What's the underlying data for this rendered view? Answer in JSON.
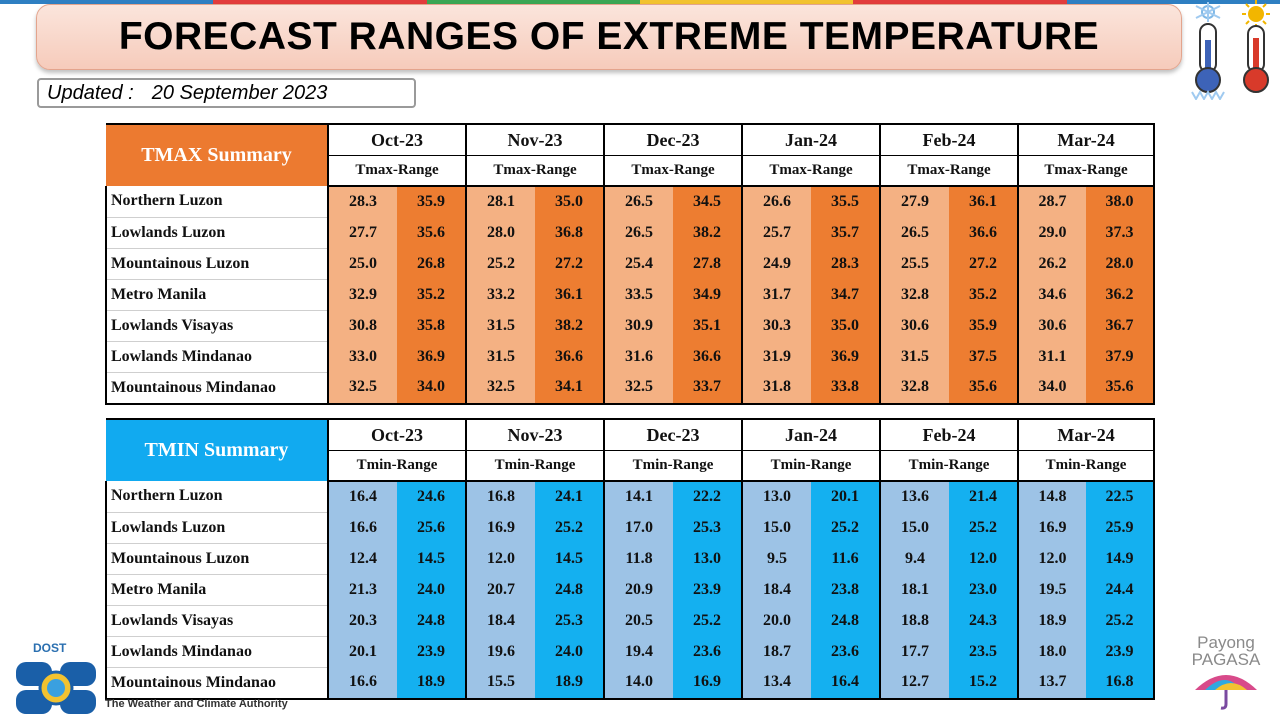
{
  "header": {
    "title": "FORECAST RANGES OF EXTREME TEMPERATURE",
    "updated_label": "Updated :",
    "updated_date": "20 September 2023"
  },
  "colors": {
    "tmax_title": "#ec7a30",
    "tmax_low": "#f4b183",
    "tmax_high": "#ed7d31",
    "tmin_title": "#11aaf0",
    "tmin_low": "#9dc3e6",
    "tmin_high": "#14b0f0"
  },
  "icons": [
    "cold-thermometer-icon",
    "hot-thermometer-icon",
    "dost-logo-icon",
    "payong-pagasa-umbrella-icon"
  ],
  "tmax": {
    "title": "TMAX Summary",
    "range_label": "Tmax-Range",
    "months": [
      "Oct-23",
      "Nov-23",
      "Dec-23",
      "Jan-24",
      "Feb-24",
      "Mar-24"
    ],
    "rows": [
      {
        "region": "Northern Luzon",
        "values": [
          "28.3",
          "35.9",
          "28.1",
          "35.0",
          "26.5",
          "34.5",
          "26.6",
          "35.5",
          "27.9",
          "36.1",
          "28.7",
          "38.0"
        ]
      },
      {
        "region": "Lowlands Luzon",
        "values": [
          "27.7",
          "35.6",
          "28.0",
          "36.8",
          "26.5",
          "38.2",
          "25.7",
          "35.7",
          "26.5",
          "36.6",
          "29.0",
          "37.3"
        ]
      },
      {
        "region": "Mountainous Luzon",
        "values": [
          "25.0",
          "26.8",
          "25.2",
          "27.2",
          "25.4",
          "27.8",
          "24.9",
          "28.3",
          "25.5",
          "27.2",
          "26.2",
          "28.0"
        ]
      },
      {
        "region": "Metro Manila",
        "values": [
          "32.9",
          "35.2",
          "33.2",
          "36.1",
          "33.5",
          "34.9",
          "31.7",
          "34.7",
          "32.8",
          "35.2",
          "34.6",
          "36.2"
        ]
      },
      {
        "region": "Lowlands Visayas",
        "values": [
          "30.8",
          "35.8",
          "31.5",
          "38.2",
          "30.9",
          "35.1",
          "30.3",
          "35.0",
          "30.6",
          "35.9",
          "30.6",
          "36.7"
        ]
      },
      {
        "region": "Lowlands Mindanao",
        "values": [
          "33.0",
          "36.9",
          "31.5",
          "36.6",
          "31.6",
          "36.6",
          "31.9",
          "36.9",
          "31.5",
          "37.5",
          "31.1",
          "37.9"
        ]
      },
      {
        "region": "Mountainous Mindanao",
        "values": [
          "32.5",
          "34.0",
          "32.5",
          "34.1",
          "32.5",
          "33.7",
          "31.8",
          "33.8",
          "32.8",
          "35.6",
          "34.0",
          "35.6"
        ]
      }
    ]
  },
  "tmin": {
    "title": "TMIN Summary",
    "range_label": "Tmin-Range",
    "months": [
      "Oct-23",
      "Nov-23",
      "Dec-23",
      "Jan-24",
      "Feb-24",
      "Mar-24"
    ],
    "rows": [
      {
        "region": "Northern Luzon",
        "values": [
          "16.4",
          "24.6",
          "16.8",
          "24.1",
          "14.1",
          "22.2",
          "13.0",
          "20.1",
          "13.6",
          "21.4",
          "14.8",
          "22.5"
        ]
      },
      {
        "region": "Lowlands Luzon",
        "values": [
          "16.6",
          "25.6",
          "16.9",
          "25.2",
          "17.0",
          "25.3",
          "15.0",
          "25.2",
          "15.0",
          "25.2",
          "16.9",
          "25.9"
        ]
      },
      {
        "region": "Mountainous Luzon",
        "values": [
          "12.4",
          "14.5",
          "12.0",
          "14.5",
          "11.8",
          "13.0",
          "9.5",
          "11.6",
          "9.4",
          "12.0",
          "12.0",
          "14.9"
        ]
      },
      {
        "region": "Metro Manila",
        "values": [
          "21.3",
          "24.0",
          "20.7",
          "24.8",
          "20.9",
          "23.9",
          "18.4",
          "23.8",
          "18.1",
          "23.0",
          "19.5",
          "24.4"
        ]
      },
      {
        "region": "Lowlands Visayas",
        "values": [
          "20.3",
          "24.8",
          "18.4",
          "25.3",
          "20.5",
          "25.2",
          "20.0",
          "24.8",
          "18.8",
          "24.3",
          "18.9",
          "25.2"
        ]
      },
      {
        "region": "Lowlands Mindanao",
        "values": [
          "20.1",
          "23.9",
          "19.6",
          "24.0",
          "19.4",
          "23.6",
          "18.7",
          "23.6",
          "17.7",
          "23.5",
          "18.0",
          "23.9"
        ]
      },
      {
        "region": "Mountainous Mindanao",
        "values": [
          "16.6",
          "18.9",
          "15.5",
          "18.9",
          "14.0",
          "16.9",
          "13.4",
          "16.4",
          "12.7",
          "15.2",
          "13.7",
          "16.8"
        ]
      }
    ]
  },
  "footer": {
    "dost_label": "DOST",
    "tagline": "The Weather and Climate Authority",
    "payong_line1": "Payong",
    "payong_line2": "PAGASA"
  }
}
